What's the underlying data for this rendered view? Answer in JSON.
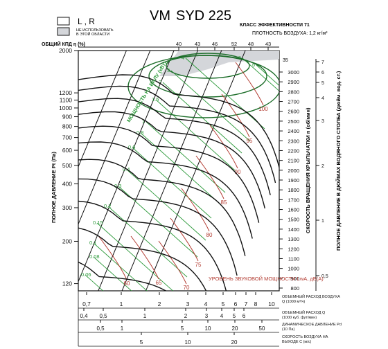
{
  "header": {
    "title_prefix": "VM",
    "title_model": "SYD 225",
    "legend_lr": "L , R",
    "legend_not_use_line1": "НЕ ИСПОЛЬЗОВАТЬ",
    "legend_not_use_line2": "В ЭТОЙ ОБЛАСТИ",
    "legend_one": "1",
    "efficiency_class": "КЛАСС ЭФФЕКТИВНОСТИ 71",
    "air_density": "ПЛОТНОСТЬ ВОЗДУХА: 1,2 кг/м³"
  },
  "colors": {
    "black": "#111111",
    "green": "#2e9a3c",
    "red": "#b23a30",
    "forbidden": "#d4d6da",
    "grid": "#222222"
  },
  "chart_data": {
    "type": "line",
    "title": "VM SYD 225",
    "top_label": "ОБЩИЙ КПД η (%)",
    "efficiency_ticks": [
      "40",
      "43",
      "46",
      "52",
      "48",
      "43"
    ],
    "left_axis": {
      "label": "ПОЛНОЕ ДАВЛЕНИЕ Pt (Па)",
      "scale": "log",
      "range": [
        110,
        2000
      ],
      "ticks": [
        "2000",
        "1200",
        "1100",
        "1000",
        "900",
        "800",
        "700",
        "600",
        "500",
        "400",
        "300",
        "200",
        "120"
      ]
    },
    "rpm_axis": {
      "label": "СКОРОСТЬ ВРАЩЕНИЯ КРЫЛЬЧАТКИ n (об/мин)",
      "ticks": [
        "3000",
        "2900",
        "2800",
        "2700",
        "2600",
        "2500",
        "2400",
        "2300",
        "2200",
        "2100",
        "2000",
        "1900",
        "1800",
        "1700",
        "1600",
        "1500",
        "1400",
        "1300",
        "1200",
        "1100",
        "1000",
        "900",
        "800"
      ],
      "extra_top": "35"
    },
    "inch_axis": {
      "label": "ПОЛНОЕ ДАВЛЕНИЕ В ДЮЙМАХ ВОДЯНОГО СТОЛБА (дюйм. вод. ст.)",
      "ticks": [
        "7",
        "6",
        "5",
        "4",
        "3",
        "2",
        "1",
        "0,5"
      ]
    },
    "bottom_axes": [
      {
        "label": "ОБЪЕМНЫЙ РАСХОД ВОЗДУХА Q (1000 м³/ч)",
        "ticks": [
          "0,7",
          "1",
          "2",
          "3",
          "4",
          "5",
          "6",
          "7",
          "8",
          "10"
        ]
      },
      {
        "label": "ОБЪЕМНЫЙ РАСХОД Q (1000 куб. фут/мин)",
        "ticks": [
          "0,4",
          "0,5",
          "1",
          "2",
          "3",
          "4",
          "5",
          "6"
        ]
      },
      {
        "label": "ДИНАМИЧЕСКОЕ ДАВЛЕНИЕ Pd (10 Па)",
        "ticks": [
          "0,5",
          "1",
          "5",
          "10",
          "20",
          "50"
        ]
      },
      {
        "label": "СКОРОСТЬ ВОЗДУХА НА ВЫХОДЕ C (м/с)",
        "ticks": [
          "5",
          "10",
          "20"
        ]
      }
    ],
    "power_label": "МОЩНОСТЬ НА ВАЛУ (кВт)",
    "power_ticks": [
      "0.06",
      "0.08",
      "0.1",
      "0.15",
      "0.2",
      "0.3",
      "0.4",
      "0.6",
      "0.8",
      "1",
      "1.5",
      "2",
      "3",
      "4",
      "5",
      "6"
    ],
    "sound_label": "УРОВЕНЬ ЗВУКОВОЙ МОЩНОСТИ LwA, дБ(А)",
    "sound_ticks": [
      "60",
      "65",
      "70",
      "75",
      "80",
      "85",
      "90",
      "95",
      "100"
    ],
    "rpm_curves": [
      3000,
      2800,
      2600,
      2400,
      2200,
      2000,
      1800,
      1600,
      1400,
      1200,
      1000,
      800
    ]
  }
}
